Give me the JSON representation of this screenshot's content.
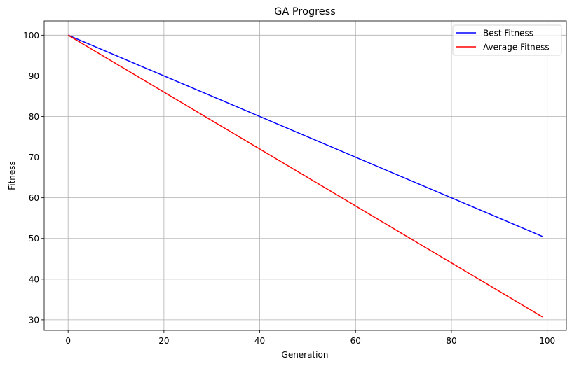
{
  "chart_data": {
    "type": "line",
    "title": "GA Progress",
    "xlabel": "Generation",
    "ylabel": "Fitness",
    "xlim": [
      -5,
      104
    ],
    "ylim": [
      27.4,
      103.5
    ],
    "xticks": [
      0,
      20,
      40,
      60,
      80,
      100
    ],
    "yticks": [
      30,
      40,
      50,
      60,
      70,
      80,
      90,
      100
    ],
    "grid": true,
    "legend_position": "top-right",
    "series": [
      {
        "name": "Best Fitness",
        "color": "#0000ff",
        "x": [
          0,
          99
        ],
        "y": [
          100,
          50.5
        ]
      },
      {
        "name": "Average Fitness",
        "color": "#ff0000",
        "x": [
          0,
          99
        ],
        "y": [
          100,
          30.7
        ]
      }
    ]
  }
}
